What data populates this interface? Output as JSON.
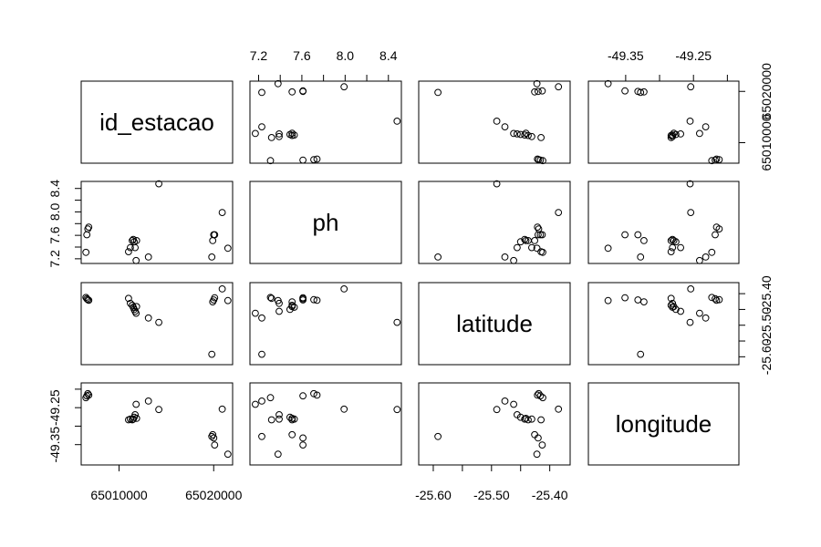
{
  "chart_data": {
    "type": "scatter",
    "variables": [
      {
        "name": "id_estacao",
        "range": [
          65006000,
          65022000
        ],
        "ticks": [
          65010000,
          65020000
        ],
        "tick_labels": [
          "65010000",
          "65020000"
        ]
      },
      {
        "name": "ph",
        "range": [
          7.12,
          8.52
        ],
        "ticks": [
          7.2,
          7.6,
          8.0,
          8.4
        ],
        "tick_labels": [
          "7.2",
          "7.6",
          "8.0",
          "8.4"
        ],
        "minor_ticks": [
          7.4,
          7.8,
          8.2
        ]
      },
      {
        "name": "latitude",
        "range": [
          -25.625,
          -25.365
        ],
        "ticks": [
          -25.6,
          -25.5,
          -25.4
        ],
        "tick_labels": [
          "-25.60",
          "-25.50",
          "-25.40"
        ],
        "minor_ticks": [
          -25.55,
          -25.45
        ]
      },
      {
        "name": "longitude",
        "range": [
          -49.405,
          -49.183
        ],
        "ticks": [
          -49.35,
          -49.25
        ],
        "tick_labels": [
          "-49.35",
          "-49.25"
        ],
        "minor_ticks": [
          -49.2,
          -49.3
        ]
      }
    ],
    "points": [
      [
        65006500,
        7.31,
        -25.412,
        -49.223
      ],
      [
        65006600,
        7.61,
        -25.416,
        -49.218
      ],
      [
        65006700,
        7.71,
        -25.419,
        -49.212
      ],
      [
        65006800,
        7.74,
        -25.421,
        -49.216
      ],
      [
        65011000,
        7.32,
        -25.415,
        -49.283
      ],
      [
        65011200,
        7.39,
        -25.431,
        -49.281
      ],
      [
        65011400,
        7.51,
        -25.437,
        -49.283
      ],
      [
        65011500,
        7.53,
        -25.443,
        -49.281
      ],
      [
        65011600,
        7.49,
        -25.45,
        -49.276
      ],
      [
        65011700,
        7.39,
        -25.456,
        -49.269
      ],
      [
        65011800,
        7.17,
        -25.462,
        -49.241
      ],
      [
        65011850,
        7.51,
        -25.441,
        -49.279
      ],
      [
        65013100,
        7.23,
        -25.477,
        -49.232
      ],
      [
        65014200,
        8.48,
        -25.491,
        -49.255
      ],
      [
        65019800,
        7.23,
        -25.592,
        -49.328
      ],
      [
        65019900,
        7.51,
        -25.426,
        -49.323
      ],
      [
        65020000,
        7.61,
        -25.42,
        -49.332
      ],
      [
        65020100,
        7.61,
        -25.413,
        -49.351
      ],
      [
        65020900,
        7.99,
        -25.385,
        -49.254
      ],
      [
        65021500,
        7.38,
        -25.422,
        -49.376
      ]
    ]
  }
}
